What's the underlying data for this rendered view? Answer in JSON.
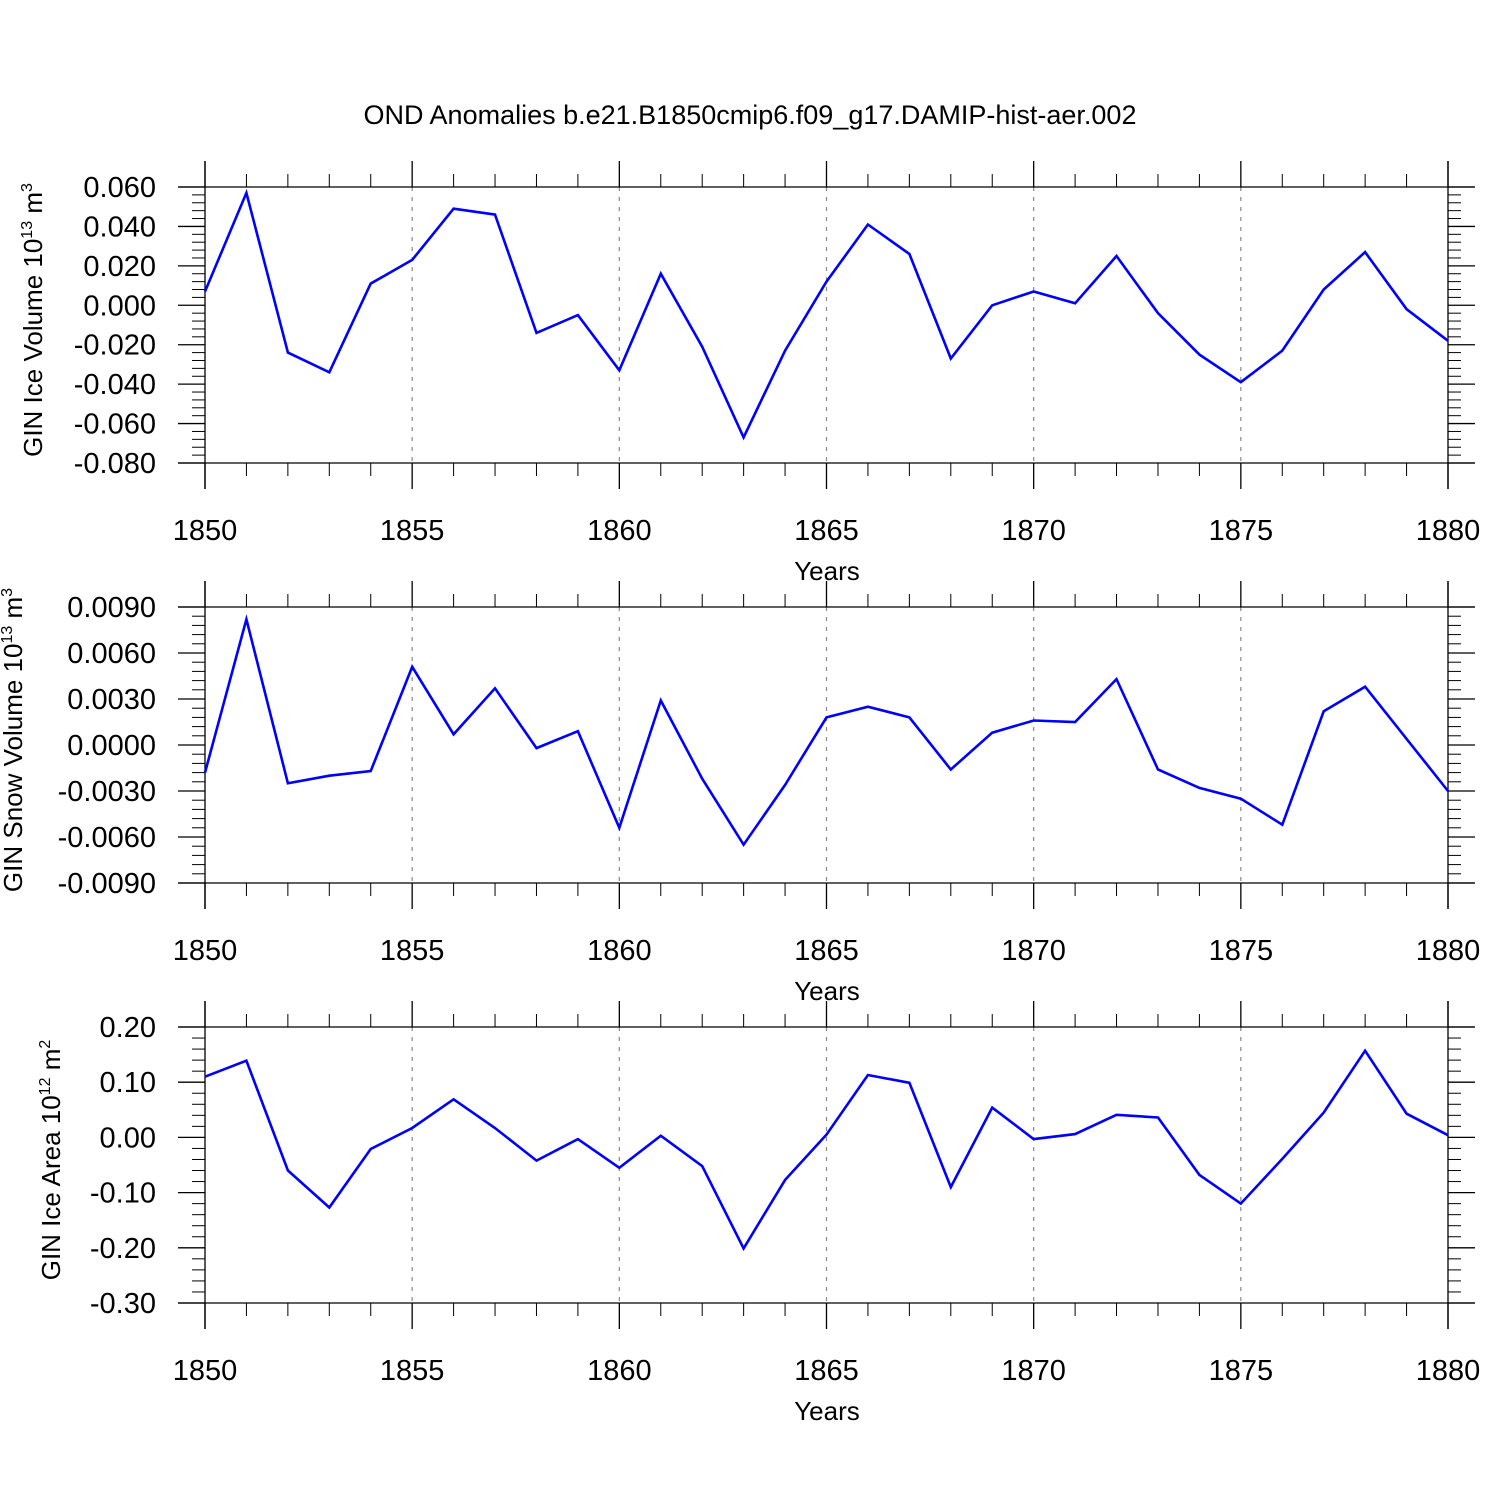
{
  "figure": {
    "title": "OND Anomalies b.e21.B1850cmip6.f09_g17.DAMIP-hist-aer.002"
  },
  "colors": {
    "line": "#0000ff",
    "axis": "#000000",
    "grid": "#888888"
  },
  "chart_data": [
    {
      "type": "line",
      "ylabel": "GIN Ice Volume 10",
      "ylabel_exp": "13",
      "ylabel_unit": " m",
      "ylabel_unit_exp": "3",
      "xlabel": "Years",
      "xlim": [
        1850,
        1880
      ],
      "ylim": [
        -0.08,
        0.06
      ],
      "yticks": [
        0.06,
        0.04,
        0.02,
        0.0,
        -0.02,
        -0.04,
        -0.06,
        -0.08
      ],
      "ytick_labels": [
        "0.060",
        "0.040",
        "0.020",
        "0.000",
        "-0.020",
        "-0.040",
        "-0.060",
        "-0.080"
      ],
      "xticks": [
        1850,
        1855,
        1860,
        1865,
        1870,
        1875,
        1880
      ],
      "xtick_labels": [
        "1850",
        "1855",
        "1860",
        "1865",
        "1870",
        "1875",
        "1880"
      ],
      "grid": "vertical dashed at major x ticks",
      "x": [
        1850,
        1851,
        1852,
        1853,
        1854,
        1855,
        1856,
        1857,
        1858,
        1859,
        1860,
        1861,
        1862,
        1863,
        1864,
        1865,
        1866,
        1867,
        1868,
        1869,
        1870,
        1871,
        1872,
        1873,
        1874,
        1875,
        1876,
        1877,
        1878,
        1879,
        1880
      ],
      "y": [
        0.007,
        0.057,
        -0.024,
        -0.034,
        0.011,
        0.023,
        0.049,
        0.046,
        -0.014,
        -0.005,
        -0.033,
        0.016,
        -0.021,
        -0.067,
        -0.023,
        0.012,
        0.041,
        0.026,
        -0.027,
        0.0,
        0.007,
        0.001,
        0.025,
        -0.004,
        -0.025,
        -0.039,
        -0.023,
        0.008,
        0.027,
        -0.002,
        -0.018
      ]
    },
    {
      "type": "line",
      "ylabel": "GIN Snow Volume 10",
      "ylabel_exp": "13",
      "ylabel_unit": " m",
      "ylabel_unit_exp": "3",
      "xlabel": "Years",
      "xlim": [
        1850,
        1880
      ],
      "ylim": [
        -0.009,
        0.009
      ],
      "yticks": [
        0.009,
        0.006,
        0.003,
        0.0,
        -0.003,
        -0.006,
        -0.009
      ],
      "ytick_labels": [
        "0.0090",
        "0.0060",
        "0.0030",
        "0.0000",
        "-0.0030",
        "-0.0060",
        "-0.0090"
      ],
      "xticks": [
        1850,
        1855,
        1860,
        1865,
        1870,
        1875,
        1880
      ],
      "xtick_labels": [
        "1850",
        "1855",
        "1860",
        "1865",
        "1870",
        "1875",
        "1880"
      ],
      "grid": "vertical dashed at major x ticks",
      "x": [
        1850,
        1851,
        1852,
        1853,
        1854,
        1855,
        1856,
        1857,
        1858,
        1859,
        1860,
        1861,
        1862,
        1863,
        1864,
        1865,
        1866,
        1867,
        1868,
        1869,
        1870,
        1871,
        1872,
        1873,
        1874,
        1875,
        1876,
        1877,
        1878,
        1879,
        1880
      ],
      "y": [
        -0.0018,
        0.0082,
        -0.0025,
        -0.002,
        -0.0017,
        0.0051,
        0.0007,
        0.0037,
        -0.0002,
        0.0009,
        -0.0054,
        0.0029,
        -0.0022,
        -0.0065,
        -0.0026,
        0.0018,
        0.0025,
        0.0018,
        -0.0016,
        0.0008,
        0.0016,
        0.0015,
        0.0043,
        -0.0016,
        -0.0028,
        -0.0035,
        -0.0052,
        0.0022,
        0.0038,
        0.0004,
        -0.003
      ]
    },
    {
      "type": "line",
      "ylabel": "GIN Ice Area 10",
      "ylabel_exp": "12",
      "ylabel_unit": " m",
      "ylabel_unit_exp": "2",
      "xlabel": "Years",
      "xlim": [
        1850,
        1880
      ],
      "ylim": [
        -0.3,
        0.2
      ],
      "yticks": [
        0.2,
        0.1,
        0.0,
        -0.1,
        -0.2,
        -0.3
      ],
      "ytick_labels": [
        "0.20",
        "0.10",
        "0.00",
        "-0.10",
        "-0.20",
        "-0.30"
      ],
      "xticks": [
        1850,
        1855,
        1860,
        1865,
        1870,
        1875,
        1880
      ],
      "xtick_labels": [
        "1850",
        "1855",
        "1860",
        "1865",
        "1870",
        "1875",
        "1880"
      ],
      "grid": "vertical dashed at major x ticks",
      "x": [
        1850,
        1851,
        1852,
        1853,
        1854,
        1855,
        1856,
        1857,
        1858,
        1859,
        1860,
        1861,
        1862,
        1863,
        1864,
        1865,
        1866,
        1867,
        1868,
        1869,
        1870,
        1871,
        1872,
        1873,
        1874,
        1875,
        1876,
        1877,
        1878,
        1879,
        1880
      ],
      "y": [
        0.11,
        0.139,
        -0.06,
        -0.127,
        -0.021,
        0.017,
        0.069,
        0.017,
        -0.042,
        -0.003,
        -0.055,
        0.003,
        -0.052,
        -0.201,
        -0.077,
        0.005,
        0.113,
        0.099,
        -0.09,
        0.054,
        -0.003,
        0.006,
        0.041,
        0.036,
        -0.068,
        -0.12,
        -0.039,
        0.045,
        0.157,
        0.043,
        0.004
      ]
    }
  ]
}
